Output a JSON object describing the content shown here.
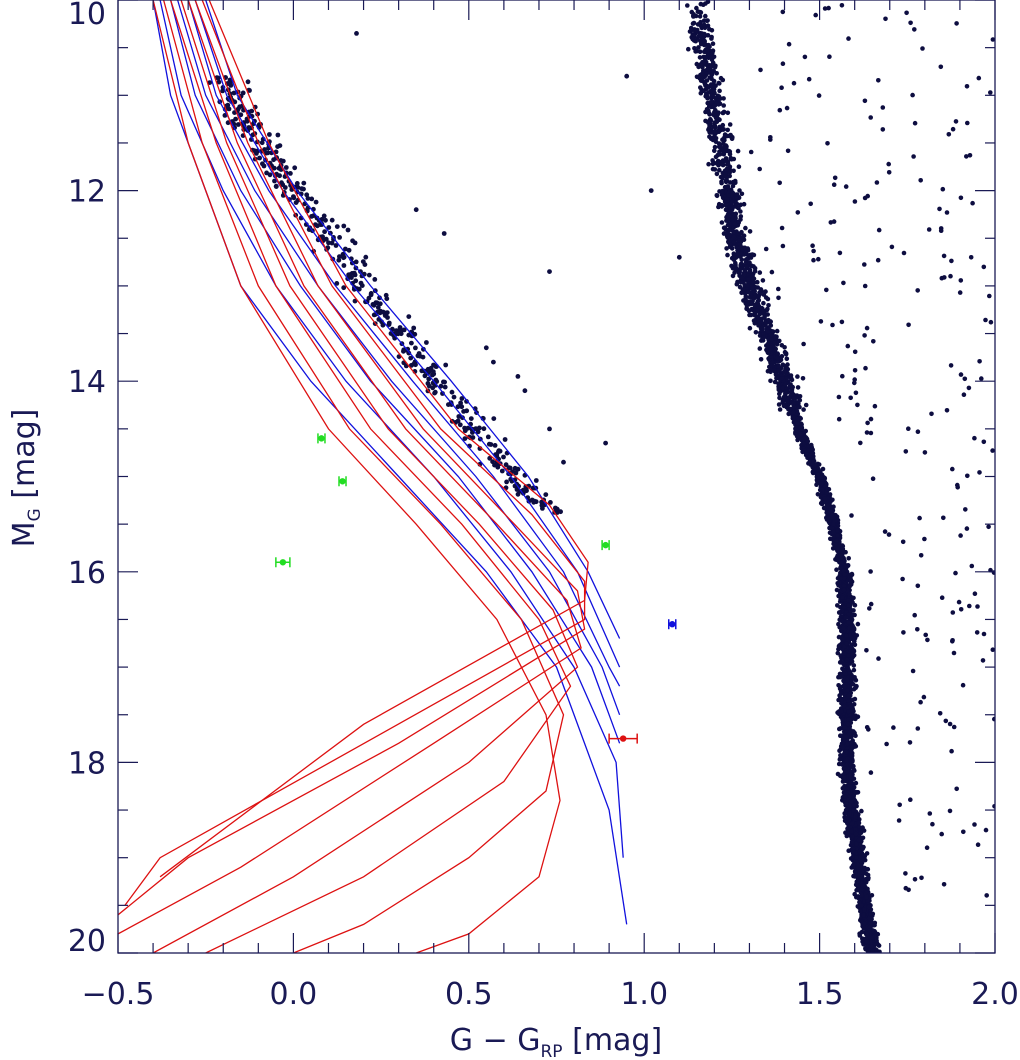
{
  "chart_data": {
    "type": "scatter",
    "title": "",
    "xlabel": {
      "main": "G − G",
      "sub": "RP",
      "unit": " [mag]"
    },
    "ylabel": {
      "main": "M",
      "sub": "G",
      "unit": " [mag]"
    },
    "xlim": [
      -0.5,
      2.0
    ],
    "ylim": [
      20.0,
      10.0
    ],
    "y_inverted": true,
    "x_ticks": [
      -0.5,
      0.0,
      0.5,
      1.0,
      1.5,
      2.0
    ],
    "x_tick_labels": [
      "−0.5",
      "0.0",
      "0.5",
      "1.0",
      "1.5",
      "2.0"
    ],
    "y_ticks": [
      10,
      12,
      14,
      16,
      18,
      20
    ],
    "y_tick_labels": [
      "10",
      "12",
      "14",
      "16",
      "18",
      "20"
    ],
    "x_minor_step": 0.1,
    "y_minor_step": 0.5,
    "grid": false,
    "colors": {
      "axis": "#1a1a55",
      "points": "#0d0d40",
      "red": "#dd1111",
      "blue": "#1111dd",
      "green": "#22dd22"
    },
    "main_sequence": [
      [
        1.15,
        10.0
      ],
      [
        1.17,
        10.5
      ],
      [
        1.19,
        11.0
      ],
      [
        1.22,
        11.5
      ],
      [
        1.24,
        12.0
      ],
      [
        1.26,
        12.5
      ],
      [
        1.3,
        13.0
      ],
      [
        1.35,
        13.5
      ],
      [
        1.4,
        14.0
      ],
      [
        1.44,
        14.5
      ],
      [
        1.5,
        15.0
      ],
      [
        1.54,
        15.5
      ],
      [
        1.57,
        16.0
      ],
      [
        1.58,
        16.5
      ],
      [
        1.58,
        17.0
      ],
      [
        1.58,
        17.5
      ],
      [
        1.58,
        18.0
      ],
      [
        1.59,
        18.5
      ],
      [
        1.61,
        19.0
      ],
      [
        1.63,
        19.5
      ],
      [
        1.65,
        20.0
      ]
    ],
    "white_dwarf_sequence": [
      [
        -0.2,
        10.8
      ],
      [
        -0.1,
        11.5
      ],
      [
        0.0,
        12.0
      ],
      [
        0.1,
        12.5
      ],
      [
        0.2,
        13.0
      ],
      [
        0.3,
        13.5
      ],
      [
        0.4,
        14.0
      ],
      [
        0.5,
        14.4
      ],
      [
        0.6,
        14.9
      ],
      [
        0.7,
        15.3
      ],
      [
        0.75,
        15.4
      ]
    ],
    "field_scatter_region": {
      "x": [
        1.3,
        2.0
      ],
      "y": [
        10.0,
        19.5
      ]
    },
    "isochrones_blue": [
      [
        [
          -0.4,
          10.0
        ],
        [
          -0.35,
          11.0
        ],
        [
          -0.25,
          12.0
        ],
        [
          -0.15,
          13.0
        ],
        [
          0.05,
          14.0
        ],
        [
          0.3,
          15.0
        ],
        [
          0.55,
          16.0
        ],
        [
          0.75,
          17.0
        ],
        [
          0.9,
          18.5
        ],
        [
          0.95,
          19.7
        ]
      ],
      [
        [
          -0.38,
          10.0
        ],
        [
          -0.32,
          11.0
        ],
        [
          -0.2,
          12.0
        ],
        [
          -0.05,
          13.0
        ],
        [
          0.15,
          14.0
        ],
        [
          0.4,
          15.0
        ],
        [
          0.62,
          16.0
        ],
        [
          0.8,
          17.0
        ],
        [
          0.92,
          18.0
        ],
        [
          0.94,
          19.0
        ]
      ],
      [
        [
          -0.35,
          10.0
        ],
        [
          -0.28,
          11.0
        ],
        [
          -0.15,
          12.0
        ],
        [
          0.02,
          13.0
        ],
        [
          0.22,
          14.0
        ],
        [
          0.47,
          15.0
        ],
        [
          0.68,
          16.0
        ],
        [
          0.85,
          17.0
        ],
        [
          0.93,
          17.8
        ]
      ],
      [
        [
          -0.33,
          10.0
        ],
        [
          -0.25,
          11.0
        ],
        [
          -0.11,
          12.0
        ],
        [
          0.07,
          13.0
        ],
        [
          0.28,
          14.0
        ],
        [
          0.52,
          15.0
        ],
        [
          0.73,
          16.0
        ],
        [
          0.88,
          17.0
        ],
        [
          0.93,
          17.5
        ]
      ],
      [
        [
          -0.3,
          10.0
        ],
        [
          -0.22,
          11.0
        ],
        [
          -0.07,
          12.0
        ],
        [
          0.12,
          13.0
        ],
        [
          0.34,
          14.0
        ],
        [
          0.57,
          15.0
        ],
        [
          0.77,
          16.0
        ],
        [
          0.9,
          17.0
        ],
        [
          0.93,
          17.2
        ]
      ],
      [
        [
          -0.28,
          10.0
        ],
        [
          -0.19,
          11.0
        ],
        [
          -0.03,
          12.0
        ],
        [
          0.17,
          13.0
        ],
        [
          0.4,
          14.0
        ],
        [
          0.62,
          15.0
        ],
        [
          0.81,
          16.0
        ],
        [
          0.93,
          17.0
        ]
      ],
      [
        [
          -0.25,
          10.0
        ],
        [
          -0.16,
          11.0
        ],
        [
          0.01,
          12.0
        ],
        [
          0.22,
          13.0
        ],
        [
          0.45,
          14.0
        ],
        [
          0.67,
          15.0
        ],
        [
          0.84,
          16.0
        ],
        [
          0.93,
          16.7
        ]
      ]
    ],
    "isochrones_red": [
      [
        [
          -0.4,
          10.0
        ],
        [
          -0.3,
          11.5
        ],
        [
          -0.15,
          13.0
        ],
        [
          0.1,
          14.5
        ],
        [
          0.35,
          15.5
        ],
        [
          0.58,
          16.5
        ],
        [
          0.72,
          17.5
        ],
        [
          0.76,
          18.4
        ],
        [
          0.7,
          19.2
        ],
        [
          0.5,
          19.8
        ],
        [
          0.35,
          20.0
        ]
      ],
      [
        [
          -0.37,
          10.0
        ],
        [
          -0.26,
          11.5
        ],
        [
          -0.1,
          13.0
        ],
        [
          0.16,
          14.5
        ],
        [
          0.42,
          15.5
        ],
        [
          0.65,
          16.5
        ],
        [
          0.77,
          17.5
        ],
        [
          0.72,
          18.3
        ],
        [
          0.5,
          19.0
        ],
        [
          0.2,
          19.7
        ],
        [
          0.0,
          20.0
        ]
      ],
      [
        [
          -0.35,
          10.0
        ],
        [
          -0.22,
          11.5
        ],
        [
          -0.05,
          13.0
        ],
        [
          0.22,
          14.5
        ],
        [
          0.48,
          15.5
        ],
        [
          0.7,
          16.5
        ],
        [
          0.79,
          17.2
        ],
        [
          0.6,
          18.2
        ],
        [
          0.2,
          19.2
        ],
        [
          -0.25,
          20.0
        ]
      ],
      [
        [
          -0.32,
          10.0
        ],
        [
          -0.19,
          11.5
        ],
        [
          -0.01,
          13.0
        ],
        [
          0.27,
          14.5
        ],
        [
          0.53,
          15.5
        ],
        [
          0.74,
          16.4
        ],
        [
          0.81,
          17.0
        ],
        [
          0.5,
          18.0
        ],
        [
          0.0,
          19.2
        ],
        [
          -0.4,
          20.0
        ]
      ],
      [
        [
          -0.3,
          10.0
        ],
        [
          -0.16,
          11.5
        ],
        [
          0.03,
          13.0
        ],
        [
          0.32,
          14.5
        ],
        [
          0.58,
          15.5
        ],
        [
          0.78,
          16.3
        ],
        [
          0.82,
          16.8
        ],
        [
          0.4,
          17.8
        ],
        [
          -0.15,
          19.1
        ],
        [
          -0.5,
          19.8
        ]
      ],
      [
        [
          -0.28,
          10.0
        ],
        [
          -0.13,
          11.5
        ],
        [
          0.07,
          13.0
        ],
        [
          0.37,
          14.5
        ],
        [
          0.63,
          15.5
        ],
        [
          0.81,
          16.2
        ],
        [
          0.83,
          16.6
        ],
        [
          0.3,
          17.8
        ],
        [
          -0.3,
          19.0
        ],
        [
          -0.5,
          19.6
        ]
      ],
      [
        [
          -0.26,
          10.0
        ],
        [
          -0.1,
          11.5
        ],
        [
          0.11,
          13.0
        ],
        [
          0.42,
          14.5
        ],
        [
          0.68,
          15.4
        ],
        [
          0.83,
          16.1
        ],
        [
          0.83,
          16.5
        ],
        [
          0.25,
          17.7
        ],
        [
          -0.38,
          19.0
        ],
        [
          -0.48,
          19.5
        ]
      ],
      [
        [
          -0.24,
          10.0
        ],
        [
          -0.07,
          11.5
        ],
        [
          0.15,
          13.0
        ],
        [
          0.47,
          14.5
        ],
        [
          0.73,
          15.3
        ],
        [
          0.84,
          15.9
        ],
        [
          0.83,
          16.3
        ],
        [
          0.2,
          17.6
        ],
        [
          -0.38,
          19.2
        ]
      ]
    ],
    "special_points": [
      {
        "color": "green",
        "x": -0.03,
        "y": 15.9,
        "xerr": 0.02
      },
      {
        "color": "green",
        "x": 0.08,
        "y": 14.6,
        "xerr": 0.01
      },
      {
        "color": "green",
        "x": 0.14,
        "y": 15.05,
        "xerr": 0.01
      },
      {
        "color": "green",
        "x": 0.89,
        "y": 15.72,
        "xerr": 0.01
      },
      {
        "color": "blue",
        "x": 1.08,
        "y": 16.55,
        "xerr": 0.01
      },
      {
        "color": "red",
        "x": 0.94,
        "y": 17.75,
        "xerr": 0.04
      }
    ]
  }
}
